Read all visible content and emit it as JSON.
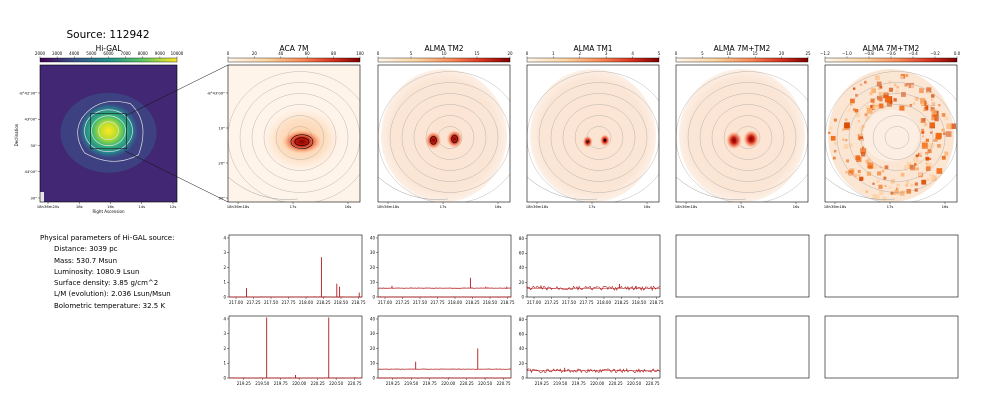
{
  "source_title": "Source: 112942",
  "params": {
    "heading": "Physical parameters of Hi-GAL source:",
    "items": [
      "Distance: 3039 pc",
      "Mass: 530.7 Msun",
      "Luminosity: 1080.9 Lsun",
      "Surface density: 3.85 g/cm^2",
      "L/M (evolution): 2.036 Lsun/Msun",
      "Bolometric temperature: 32.5 K"
    ]
  },
  "chart_data": [
    {
      "type": "heatmap",
      "title": "Hi-GAL",
      "colormap": "viridis",
      "colorbar_ticks": [
        "2000",
        "3000",
        "4000",
        "5000",
        "6000",
        "7000",
        "8000",
        "9000",
        "10000"
      ],
      "xlabel": "Right Ascension",
      "ylabel": "Declination",
      "x_ticks": [
        "18h36m20s",
        "18s",
        "16s",
        "14s",
        "12s"
      ],
      "y_ticks": [
        "-8°42'30\"",
        "43'00\"",
        "30\"",
        "44'00\"",
        "30\""
      ],
      "peaks": [
        {
          "x": 0.5,
          "y": 0.48,
          "level": "max"
        }
      ]
    },
    {
      "type": "heatmap",
      "title": "ACA 7M",
      "colormap": "OrRd",
      "colorbar_ticks": [
        "0",
        "20",
        "40",
        "60",
        "80",
        "100"
      ],
      "x_ticks": [
        "18h36m18s",
        "17s",
        "16s"
      ],
      "y_ticks": [
        "-8°43'00\"",
        "10\"",
        "20\"",
        "30\""
      ],
      "peaks": [
        {
          "x": 0.56,
          "y": 0.56,
          "level": "max"
        }
      ]
    },
    {
      "type": "heatmap",
      "title": "ALMA TM2",
      "colormap": "OrRd",
      "colorbar_ticks": [
        "0",
        "5",
        "10",
        "15",
        "20"
      ],
      "x_ticks": [
        "18h36m18s",
        "17s",
        "16s"
      ],
      "peaks": [
        {
          "x": 0.42,
          "y": 0.55,
          "level": "high"
        },
        {
          "x": 0.58,
          "y": 0.54,
          "level": "high"
        }
      ]
    },
    {
      "type": "heatmap",
      "title": "ALMA TM1",
      "colormap": "OrRd",
      "colorbar_ticks": [
        "0",
        "1",
        "2",
        "3",
        "4",
        "5"
      ],
      "x_ticks": [
        "18h36m18s",
        "17s",
        "16s"
      ],
      "peaks": [
        {
          "x": 0.46,
          "y": 0.56,
          "level": "high"
        },
        {
          "x": 0.59,
          "y": 0.55,
          "level": "high"
        }
      ]
    },
    {
      "type": "heatmap",
      "title": "ALMA 7M+TM2",
      "colormap": "OrRd",
      "colorbar_ticks": [
        "0",
        "5",
        "10",
        "15",
        "20",
        "25"
      ],
      "x_ticks": [
        "18h36m18s",
        "17s",
        "16s"
      ],
      "peaks": [
        {
          "x": 0.44,
          "y": 0.55,
          "level": "high"
        },
        {
          "x": 0.57,
          "y": 0.54,
          "level": "high"
        }
      ]
    },
    {
      "type": "heatmap",
      "title": "ALMA 7M+TM2",
      "colormap": "OrRd",
      "colorbar_ticks": [
        "−1.2",
        "−1.0",
        "−0.8",
        "−0.6",
        "−0.4",
        "−0.2",
        "0.0"
      ],
      "x_ticks": [
        "18h36m18s",
        "17s",
        "16s"
      ],
      "texture": "noisy ring"
    },
    {
      "type": "line",
      "panel": "ACA 7M spw-a",
      "xlim": [
        216.9,
        218.8
      ],
      "ylim": [
        0,
        4.2
      ],
      "x_ticks": [
        "217.00",
        "217.25",
        "217.50",
        "217.75",
        "218.00",
        "218.25",
        "218.50",
        "218.75"
      ],
      "y_ticks": [
        "0",
        "1",
        "2",
        "3",
        "4"
      ],
      "baselines": [
        0.0
      ],
      "lines": [
        {
          "x": 217.15,
          "y": 0.6
        },
        {
          "x": 218.22,
          "y": 2.7
        },
        {
          "x": 218.44,
          "y": 0.9
        },
        {
          "x": 218.48,
          "y": 0.7
        },
        {
          "x": 218.76,
          "y": 0.3
        }
      ]
    },
    {
      "type": "line",
      "panel": "ALMA TM2 spw-a",
      "xlim": [
        216.9,
        218.8
      ],
      "ylim": [
        0,
        42
      ],
      "x_ticks": [
        "217.00",
        "217.25",
        "217.50",
        "217.75",
        "218.00",
        "218.25",
        "218.50",
        "218.75"
      ],
      "y_ticks": [
        "0",
        "10",
        "20",
        "30",
        "40"
      ],
      "baselines": [
        0.0,
        6.0
      ],
      "lines": [
        {
          "x": 217.1,
          "y": 7.5
        },
        {
          "x": 218.22,
          "y": 13
        },
        {
          "x": 218.44,
          "y": 7
        },
        {
          "x": 218.47,
          "y": 6.5
        },
        {
          "x": 218.74,
          "y": 7
        }
      ]
    },
    {
      "type": "line",
      "panel": "ALMA TM1 spw-a",
      "xlim": [
        216.9,
        218.8
      ],
      "ylim": [
        0,
        85
      ],
      "x_ticks": [
        "217.00",
        "217.25",
        "217.50",
        "217.75",
        "218.00",
        "218.25",
        "218.50",
        "218.75"
      ],
      "y_ticks": [
        "0",
        "20",
        "40",
        "60",
        "80"
      ],
      "baselines": [
        12.0
      ],
      "lines": [
        {
          "x": 217.1,
          "y": 16
        },
        {
          "x": 218.22,
          "y": 18
        },
        {
          "x": 218.46,
          "y": 15
        }
      ],
      "noisy": true
    },
    {
      "type": "line",
      "panel": "ACA 7M spw-b",
      "xlim": [
        219.05,
        220.85
      ],
      "ylim": [
        0,
        4.2
      ],
      "x_ticks": [
        "219.25",
        "219.50",
        "219.75",
        "220.00",
        "220.25",
        "220.50",
        "220.75"
      ],
      "y_ticks": [
        "0",
        "1",
        "2",
        "3",
        "4"
      ],
      "baselines": [
        0.0
      ],
      "lines": [
        {
          "x": 219.56,
          "y": 4.1
        },
        {
          "x": 219.95,
          "y": 0.2
        },
        {
          "x": 220.4,
          "y": 4.1
        }
      ]
    },
    {
      "type": "line",
      "panel": "ALMA TM2 spw-b",
      "xlim": [
        219.05,
        220.85
      ],
      "ylim": [
        0,
        42
      ],
      "x_ticks": [
        "219.25",
        "219.50",
        "219.75",
        "220.00",
        "220.25",
        "220.50",
        "220.75"
      ],
      "y_ticks": [
        "0",
        "10",
        "20",
        "30",
        "40"
      ],
      "baselines": [
        0.0,
        6.0
      ],
      "lines": [
        {
          "x": 219.56,
          "y": 11
        },
        {
          "x": 220.4,
          "y": 20
        }
      ]
    },
    {
      "type": "line",
      "panel": "ALMA TM1 spw-b",
      "xlim": [
        219.05,
        220.85
      ],
      "ylim": [
        0,
        85
      ],
      "x_ticks": [
        "219.25",
        "219.50",
        "219.75",
        "220.00",
        "220.25",
        "220.50",
        "220.75"
      ],
      "y_ticks": [
        "0",
        "20",
        "40",
        "60",
        "80"
      ],
      "baselines": [
        10.0
      ],
      "lines": [
        {
          "x": 219.56,
          "y": 14
        },
        {
          "x": 220.4,
          "y": 13
        }
      ],
      "noisy": true
    },
    {
      "type": "line",
      "panel": "ALMA 7M+TM2 spw-a",
      "empty": true
    },
    {
      "type": "line",
      "panel": "ALMA 7M+TM2 (2) spw-a",
      "empty": true
    },
    {
      "type": "line",
      "panel": "ALMA 7M+TM2 spw-b",
      "empty": true
    },
    {
      "type": "line",
      "panel": "ALMA 7M+TM2 (2) spw-b",
      "empty": true
    }
  ],
  "colors": {
    "spectrum": "#b0181a",
    "axis": "#000000",
    "contour": "#9a9a9a"
  }
}
